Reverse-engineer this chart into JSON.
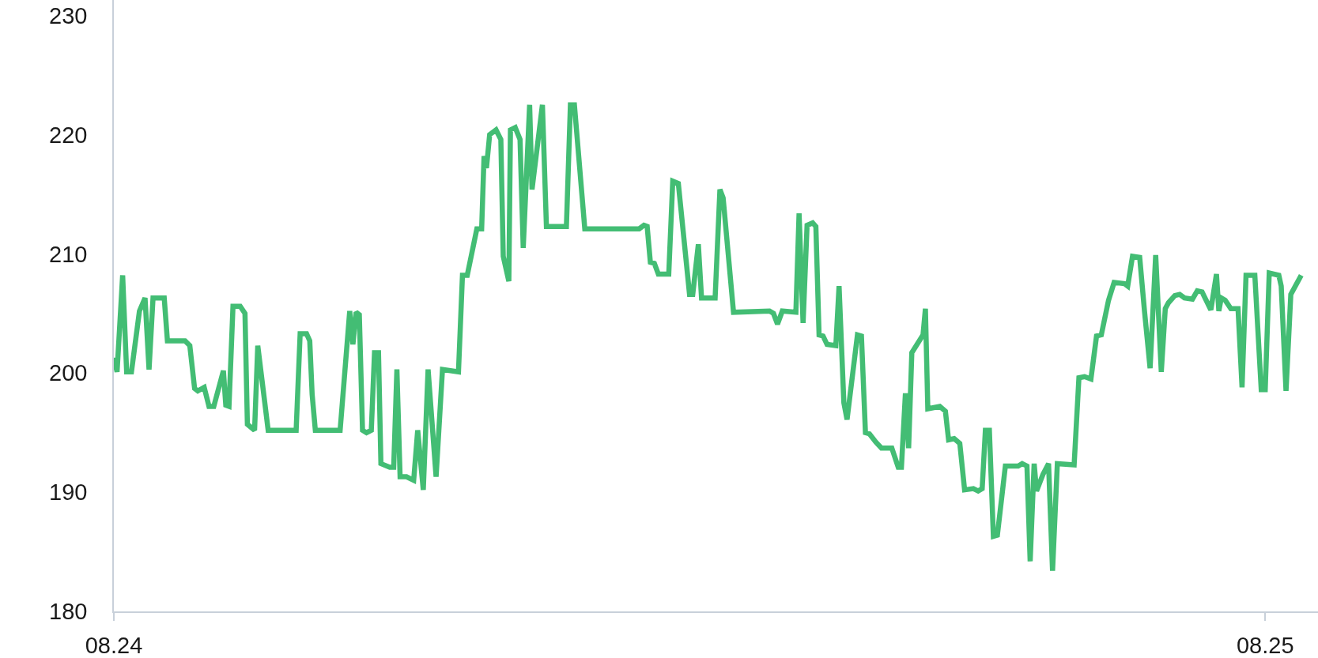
{
  "chart_data": {
    "type": "line",
    "color": "#43bd74",
    "x": [
      "--08-24T00:00",
      "--08-24T00:04",
      "--08-24T00:11",
      "--08-24T00:16",
      "--08-24T00:22",
      "--08-24T00:32",
      "--08-24T00:39",
      "--08-24T00:44",
      "--08-24T00:49",
      "--08-24T01:03",
      "--08-24T01:07",
      "--08-24T01:29",
      "--08-24T01:35",
      "--08-24T01:41",
      "--08-24T01:45",
      "--08-24T01:53",
      "--08-24T01:59",
      "--08-24T02:05",
      "--08-24T02:17",
      "--08-24T02:20",
      "--08-24T02:24",
      "--08-24T02:29",
      "--08-24T02:38",
      "--08-24T02:44",
      "--08-24T02:47",
      "--08-24T02:56",
      "--08-24T03:00",
      "--08-24T03:13",
      "--08-24T03:48",
      "--08-24T03:53",
      "--08-24T04:01",
      "--08-24T04:05",
      "--08-24T04:08",
      "--08-24T04:12",
      "--08-24T04:43",
      "--08-24T04:55",
      "--08-24T04:59",
      "--08-24T05:03",
      "--08-24T05:07",
      "--08-24T05:11",
      "--08-24T05:16",
      "--08-24T05:22",
      "--08-24T05:26",
      "--08-24T05:31",
      "--08-24T05:34",
      "--08-24T05:45",
      "--08-24T05:50",
      "--08-24T05:54",
      "--08-24T05:58",
      "--08-24T06:06",
      "--08-24T06:15",
      "--08-24T06:20",
      "--08-24T06:27",
      "--08-24T06:33",
      "--08-24T06:43",
      "--08-24T06:51",
      "--08-24T07:11",
      "--08-24T07:16",
      "--08-24T07:22",
      "--08-24T07:34",
      "--08-24T07:40",
      "--08-24T07:43",
      "--08-24T07:46",
      "--08-24T07:50",
      "--08-24T07:58",
      "--08-24T08:04",
      "--08-24T08:07",
      "--08-24T08:10",
      "--08-24T08:14",
      "--08-24T08:16",
      "--08-24T08:22",
      "--08-24T08:28",
      "--08-24T08:32",
      "--08-24T08:40",
      "--08-24T08:43",
      "--08-24T08:56",
      "--08-24T09:01",
      "--08-24T09:26",
      "--08-24T09:31",
      "--08-24T09:36",
      "--08-24T09:49",
      "--08-24T10:57",
      "--08-24T11:03",
      "--08-24T11:07",
      "--08-24T11:11",
      "--08-24T11:16",
      "--08-24T11:21",
      "--08-24T11:34",
      "--08-24T11:39",
      "--08-24T11:46",
      "--08-24T12:00",
      "--08-24T12:04",
      "--08-24T12:11",
      "--08-24T12:15",
      "--08-24T12:32",
      "--08-24T12:38",
      "--08-24T12:42",
      "--08-24T12:55",
      "--08-24T13:40",
      "--08-24T13:45",
      "--08-24T13:50",
      "--08-24T13:56",
      "--08-24T14:13",
      "--08-24T14:17",
      "--08-24T14:22",
      "--08-24T14:27",
      "--08-24T14:34",
      "--08-24T14:38",
      "--08-24T14:42",
      "--08-24T14:47",
      "--08-24T14:52",
      "--08-24T15:03",
      "--08-24T15:07",
      "--08-24T15:13",
      "--08-24T15:17",
      "--08-24T15:30",
      "--08-24T15:35",
      "--08-24T15:40",
      "--08-24T15:45",
      "--08-24T15:53",
      "--08-24T16:00",
      "--08-24T16:13",
      "--08-24T16:21",
      "--08-24T16:25",
      "--08-24T16:30",
      "--08-24T16:34",
      "--08-24T16:38",
      "--08-24T16:52",
      "--08-24T16:55",
      "--08-24T16:58",
      "--08-24T17:13",
      "--08-24T17:20",
      "--08-24T17:24",
      "--08-24T17:31",
      "--08-24T17:38",
      "--08-24T17:44",
      "--08-24T17:55",
      "--08-24T18:01",
      "--08-24T18:06",
      "--08-24T18:10",
      "--08-24T18:15",
      "--08-24T18:20",
      "--08-24T18:25",
      "--08-24T18:35",
      "--08-24T18:51",
      "--08-24T18:56",
      "--08-24T19:02",
      "--08-24T19:06",
      "--08-24T19:11",
      "--08-24T19:14",
      "--08-24T19:22",
      "--08-24T19:29",
      "--08-24T19:34",
      "--08-24T19:40",
      "--08-24T20:01",
      "--08-24T20:07",
      "--08-24T20:14",
      "--08-24T20:22",
      "--08-24T20:29",
      "--08-24T20:35",
      "--08-24T20:44",
      "--08-24T20:51",
      "--08-24T21:04",
      "--08-24T21:08",
      "--08-24T21:14",
      "--08-24T21:23",
      "--08-24T21:29",
      "--08-24T21:36",
      "--08-24T21:43",
      "--08-24T21:50",
      "--08-24T21:55",
      "--08-24T21:59",
      "--08-24T22:07",
      "--08-24T22:13",
      "--08-24T22:19",
      "--08-24T22:29",
      "--08-24T22:35",
      "--08-24T22:41",
      "--08-24T22:52",
      "--08-24T22:59",
      "--08-24T23:02",
      "--08-24T23:05",
      "--08-24T23:10",
      "--08-24T23:17",
      "--08-24T23:26",
      "--08-24T23:31",
      "--08-24T23:36",
      "--08-24T23:47",
      "--08-24T23:55",
      "--08-25T00:00",
      "--08-25T00:05",
      "--08-25T00:17",
      "--08-25T00:20",
      "--08-25T00:26",
      "--08-25T00:32",
      "--08-25T00:45"
    ],
    "values": [
      201.3,
      200.1,
      208.2,
      200.1,
      200.1,
      205.2,
      206.3,
      200.3,
      206.3,
      206.3,
      202.7,
      202.7,
      202.3,
      198.7,
      198.5,
      198.8,
      197.2,
      197.2,
      200.2,
      197.3,
      197.2,
      205.6,
      205.6,
      205.0,
      195.7,
      195.2,
      202.3,
      195.2,
      195.2,
      203.3,
      203.3,
      202.7,
      198.2,
      195.2,
      195.2,
      205.2,
      202.4,
      205.1,
      204.9,
      195.2,
      195.0,
      195.2,
      201.7,
      201.7,
      192.4,
      192.1,
      192.1,
      200.3,
      191.3,
      191.3,
      191.0,
      195.2,
      190.2,
      200.3,
      191.3,
      200.3,
      200.1,
      208.2,
      208.2,
      212.1,
      212.1,
      218.2,
      217.2,
      220.0,
      220.4,
      219.6,
      209.8,
      208.9,
      207.7,
      220.4,
      220.6,
      219.6,
      210.5,
      222.5,
      215.4,
      222.5,
      212.3,
      212.3,
      222.5,
      222.5,
      212.1,
      212.1,
      212.4,
      212.3,
      209.3,
      209.2,
      208.3,
      208.3,
      216.1,
      215.9,
      206.6,
      206.6,
      210.8,
      206.3,
      206.3,
      215.4,
      214.7,
      205.1,
      205.2,
      205.0,
      204.1,
      205.2,
      205.1,
      213.4,
      204.2,
      212.4,
      212.6,
      212.3,
      203.2,
      203.1,
      202.4,
      202.3,
      207.3,
      197.5,
      196.1,
      203.2,
      203.1,
      195.0,
      194.9,
      194.2,
      193.7,
      193.7,
      192.1,
      192.1,
      198.3,
      193.7,
      201.7,
      203.2,
      205.4,
      197.0,
      197.2,
      196.8,
      194.4,
      194.5,
      194.1,
      190.2,
      190.3,
      190.1,
      190.3,
      195.2,
      195.2,
      186.3,
      186.4,
      192.2,
      192.2,
      192.4,
      192.2,
      184.2,
      192.4,
      190.1,
      191.5,
      192.4,
      183.4,
      192.4,
      192.3,
      199.6,
      199.7,
      199.5,
      203.1,
      203.2,
      206.1,
      207.6,
      207.5,
      207.3,
      209.8,
      209.7,
      205.2,
      200.4,
      209.9,
      200.1,
      205.4,
      205.9,
      206.5,
      206.6,
      206.3,
      206.2,
      206.9,
      206.8,
      205.3,
      208.3,
      205.2,
      206.3,
      206.1,
      205.4,
      205.4,
      198.8,
      208.2,
      208.2,
      198.6,
      198.6,
      208.4,
      208.2,
      207.3,
      198.5,
      206.6,
      208.2
    ],
    "xlim": [
      "--08-24T00:00",
      "--08-25T01:06"
    ],
    "xticks": [
      {
        "value": "--08-24",
        "label": "08.24"
      },
      {
        "value": "--08-25",
        "label": "08.25"
      }
    ],
    "ylim": [
      180,
      231.3
    ],
    "yticks": [
      180,
      190,
      200,
      210,
      220,
      230
    ],
    "grid": false
  }
}
